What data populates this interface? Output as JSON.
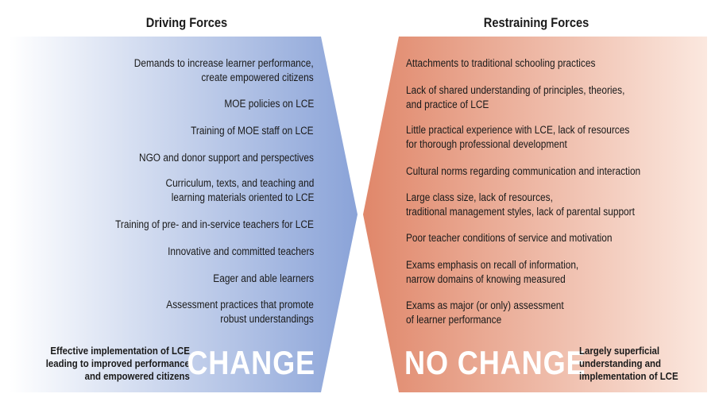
{
  "driving": {
    "title": "Driving Forces",
    "items": [
      "Demands to increase learner performance,\ncreate empowered citizens",
      "MOE policies on LCE",
      "Training of MOE staff on LCE",
      "NGO and donor support and perspectives",
      "Curriculum, texts, and teaching and\nlearning materials oriented to LCE",
      "Training of pre- and in-service teachers for LCE",
      "Innovative and committed teachers",
      "Eager and able learners",
      "Assessment practices that promote\nrobust understandings"
    ],
    "outcome": "Effective implementation of LCE\nleading to improved performance\nand empowered citizens",
    "label": "CHANGE",
    "color": "#8aa3d8"
  },
  "restraining": {
    "title": "Restraining Forces",
    "items": [
      "Attachments to traditional schooling practices",
      "Lack of shared understanding of principles, theories,\nand practice of LCE",
      "Little practical experience with LCE, lack of resources\nfor thorough professional development",
      "Cultural norms regarding communication and interaction",
      "Large class size, lack of resources,\ntraditional management styles, lack of parental support",
      "Poor teacher conditions of service and motivation",
      "Exams emphasis on recall of information,\nnarrow domains of knowing measured",
      "Exams as major (or only) assessment\nof learner performance"
    ],
    "outcome": "Largely superficial\nunderstanding and\nimplementation of LCE",
    "label": "NO CHANGE",
    "color": "#e0876a"
  }
}
